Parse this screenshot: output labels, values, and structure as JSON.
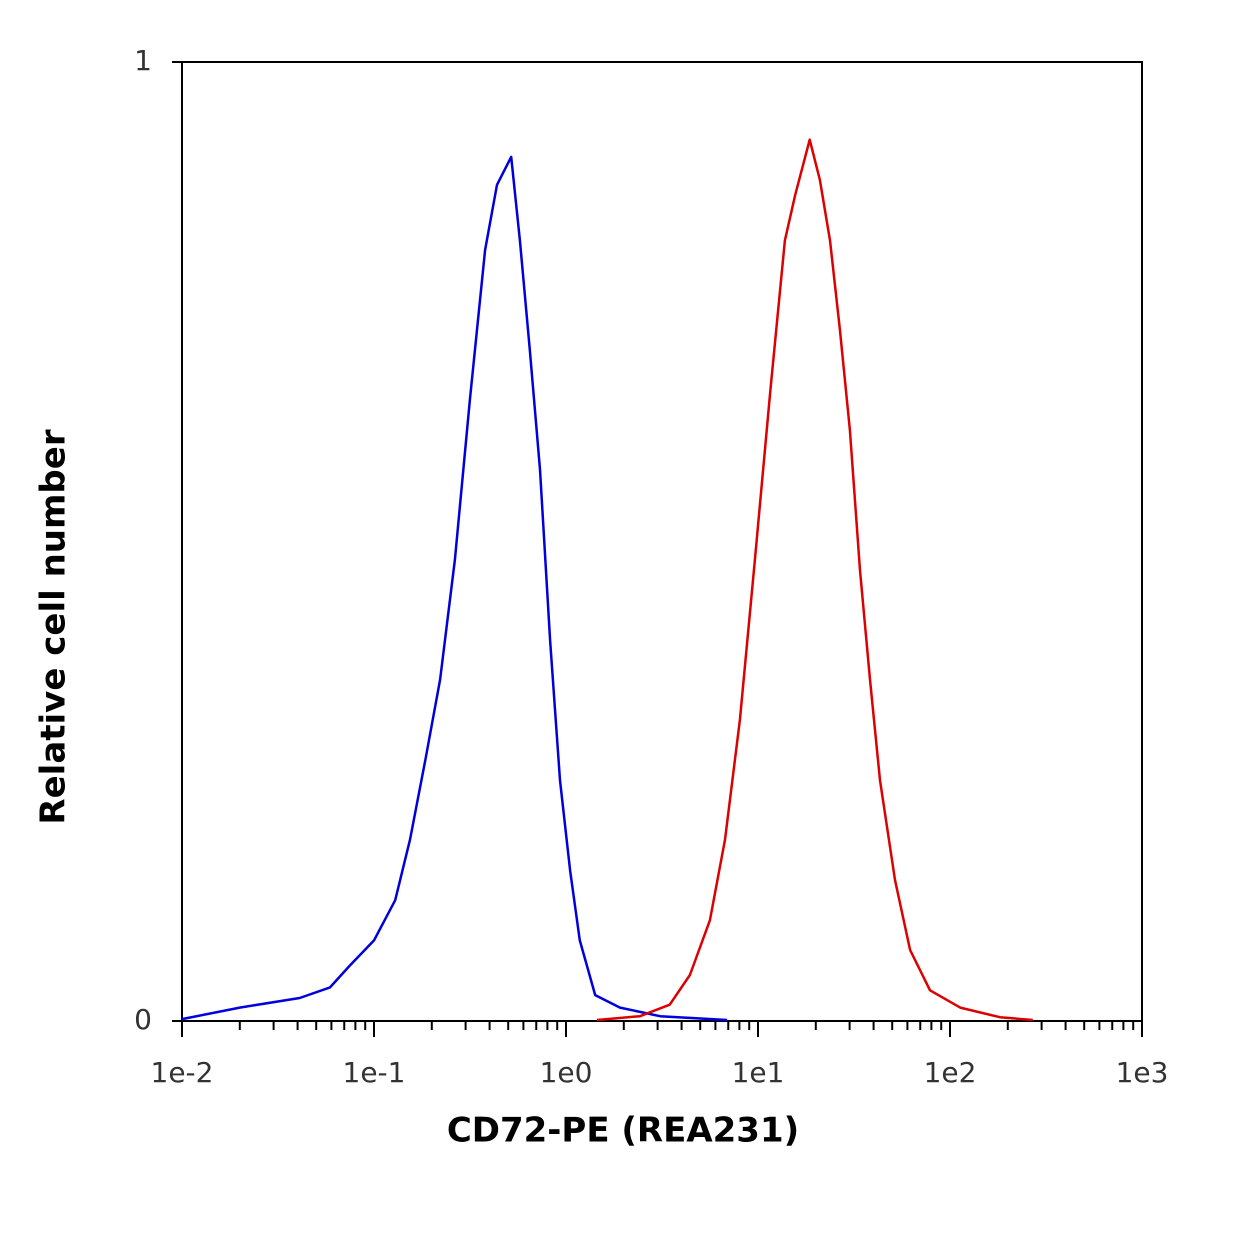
{
  "chart_data": {
    "type": "line",
    "x_label": "CD72-PE (REA231)",
    "y_label": "Relative cell number",
    "xscale": "log",
    "xlim": [
      0.01,
      1000
    ],
    "ylim": [
      0,
      1
    ],
    "xticks": [
      {
        "value": 0.01,
        "label": "1e-2"
      },
      {
        "value": 0.1,
        "label": "1e-1"
      },
      {
        "value": 1,
        "label": "1e0"
      },
      {
        "value": 10,
        "label": "1e1"
      },
      {
        "value": 100,
        "label": "1e2"
      },
      {
        "value": 1000,
        "label": "1e3"
      }
    ],
    "xminorticks": [
      0.02,
      0.03,
      0.04,
      0.05,
      0.06,
      0.07,
      0.08,
      0.09,
      0.2,
      0.3,
      0.4,
      0.5,
      0.6,
      0.7,
      0.8,
      0.9,
      2,
      3,
      4,
      5,
      6,
      7,
      8,
      9,
      20,
      30,
      40,
      50,
      60,
      70,
      80,
      90,
      200,
      300,
      400,
      500,
      600,
      700,
      800,
      900
    ],
    "yticks": [
      0,
      1
    ],
    "series": [
      {
        "color": "#0000dd",
        "x": [
          0.01,
          0.02,
          0.041,
          0.059,
          0.075,
          0.1,
          0.129,
          0.154,
          0.185,
          0.221,
          0.264,
          0.316,
          0.379,
          0.437,
          0.518,
          0.575,
          0.648,
          0.732,
          0.826,
          0.931,
          1.05,
          1.18,
          1.42,
          1.91,
          3.09,
          6.9
        ],
        "values": [
          0.002,
          0.014,
          0.024,
          0.035,
          0.058,
          0.084,
          0.126,
          0.189,
          0.272,
          0.356,
          0.481,
          0.648,
          0.804,
          0.872,
          0.901,
          0.814,
          0.7,
          0.575,
          0.397,
          0.251,
          0.157,
          0.084,
          0.027,
          0.014,
          0.005,
          0.001
        ]
      },
      {
        "color": "#dd0000",
        "x": [
          1.45,
          2.43,
          3.47,
          4.42,
          5.62,
          6.73,
          8.05,
          9.64,
          11.6,
          13.8,
          15.6,
          18.6,
          21.0,
          23.7,
          26.7,
          30.1,
          34.0,
          38.3,
          43.2,
          51.7,
          62.0,
          78.7,
          113,
          182,
          270
        ],
        "values": [
          0.001,
          0.005,
          0.017,
          0.048,
          0.105,
          0.189,
          0.314,
          0.481,
          0.658,
          0.814,
          0.861,
          0.919,
          0.877,
          0.814,
          0.721,
          0.616,
          0.47,
          0.356,
          0.251,
          0.147,
          0.074,
          0.032,
          0.014,
          0.004,
          0.001
        ]
      }
    ]
  }
}
